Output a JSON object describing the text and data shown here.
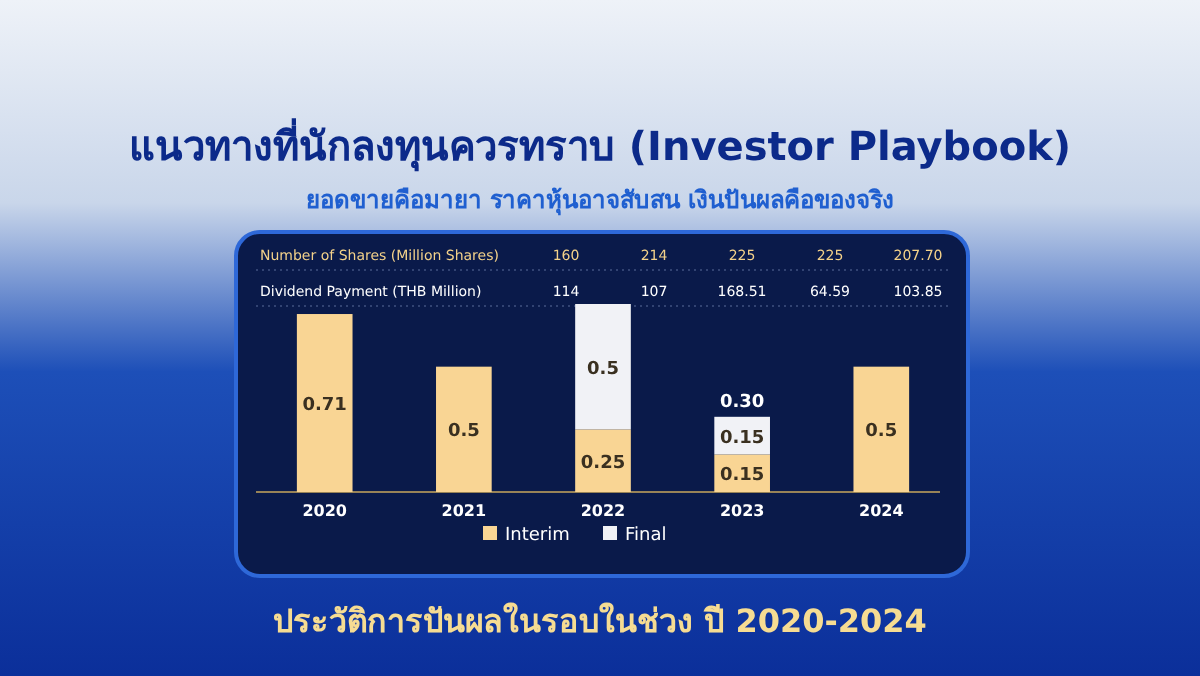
{
  "chart_data": {
    "type": "bar",
    "title": "แนวทางที่นักลงทุนควรทราบ (Investor Playbook)",
    "subtitle": "ยอดขายคือมายา ราคาหุ้นอาจสับสน เงินปันผลคือของจริง",
    "categories": [
      "2020",
      "2021",
      "2022",
      "2023",
      "2024"
    ],
    "series": [
      {
        "name": "Interim",
        "color": "#f9d594",
        "values": [
          0.71,
          0.5,
          0.25,
          0.15,
          0.5
        ]
      },
      {
        "name": "Final",
        "color": "#f1f2f6",
        "values": [
          null,
          null,
          0.5,
          0.15,
          null
        ]
      }
    ],
    "stacked": true,
    "data_labels": true,
    "totals": [
      null,
      null,
      null,
      "0.30",
      null
    ],
    "legend": "bottom",
    "annotations": [
      "Number of Shares (Million Shares)",
      "160",
      "214",
      "225",
      "225",
      "207.70",
      "Dividend Payment (THB Million)",
      "114",
      "107",
      "168.51",
      "64.59",
      "103.85",
      "ประวัติการปันผลในรอบในช่วง ปี 2020-2024"
    ]
  }
}
